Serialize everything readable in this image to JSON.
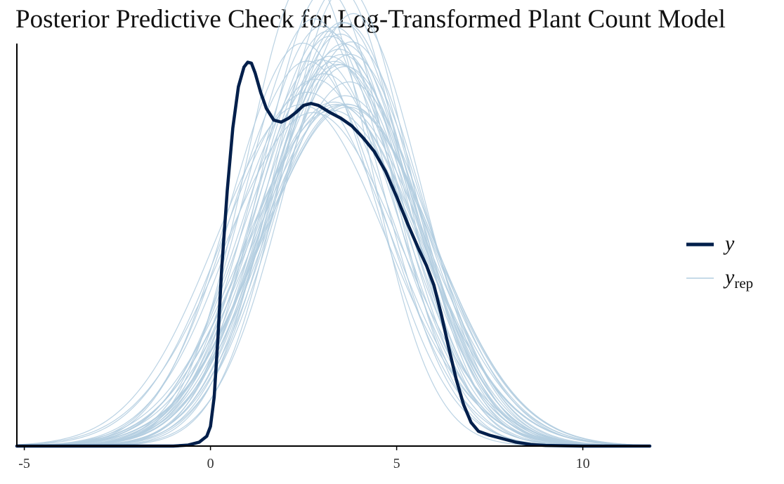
{
  "chart_data": {
    "type": "line",
    "title": "Posterior Predictive Check for Log-Transformed Plant Count Model",
    "xlabel": "",
    "ylabel": "",
    "xlim": [
      -5.2,
      11.8
    ],
    "ylim": [
      0,
      0.205
    ],
    "x_ticks": [
      -5,
      0,
      5,
      10
    ],
    "x_tick_labels": [
      "-5",
      "0",
      "5",
      "10"
    ],
    "y_axis_ticks_shown": false,
    "grid": false,
    "legend": {
      "placement": "right",
      "entries": [
        {
          "series": "y",
          "label": "y",
          "subscript": ""
        },
        {
          "series": "yrep",
          "label": "y",
          "subscript": "rep"
        }
      ]
    },
    "colors": {
      "y": "#011f4b",
      "yrep": "#b3cde0",
      "axis": "#000000"
    },
    "y_curve": {
      "name": "y",
      "x": [
        -5.2,
        -1.0,
        -0.6,
        -0.3,
        -0.1,
        0.0,
        0.1,
        0.2,
        0.3,
        0.45,
        0.6,
        0.75,
        0.9,
        1.0,
        1.1,
        1.2,
        1.35,
        1.5,
        1.7,
        1.9,
        2.1,
        2.3,
        2.5,
        2.7,
        2.9,
        3.2,
        3.5,
        3.8,
        4.1,
        4.4,
        4.7,
        5.0,
        5.3,
        5.6,
        5.8,
        6.0,
        6.2,
        6.4,
        6.6,
        6.8,
        7.0,
        7.2,
        7.5,
        7.8,
        8.2,
        8.6,
        9.0,
        10.0,
        11.8
      ],
      "y": [
        0.0,
        0.0,
        0.0005,
        0.002,
        0.005,
        0.01,
        0.025,
        0.055,
        0.09,
        0.13,
        0.162,
        0.183,
        0.193,
        0.1955,
        0.195,
        0.19,
        0.18,
        0.172,
        0.166,
        0.165,
        0.167,
        0.17,
        0.1735,
        0.1745,
        0.1735,
        0.17,
        0.167,
        0.163,
        0.157,
        0.15,
        0.14,
        0.127,
        0.113,
        0.1,
        0.092,
        0.082,
        0.067,
        0.05,
        0.034,
        0.021,
        0.012,
        0.0075,
        0.0055,
        0.004,
        0.002,
        0.0008,
        0.0003,
        0.0,
        0.0
      ]
    },
    "yrep_params": {
      "mean_range": [
        2.5,
        3.8
      ],
      "sd_range": [
        1.7,
        2.4
      ],
      "count": 40
    },
    "x_domain": [
      -5.2,
      11.8
    ]
  }
}
